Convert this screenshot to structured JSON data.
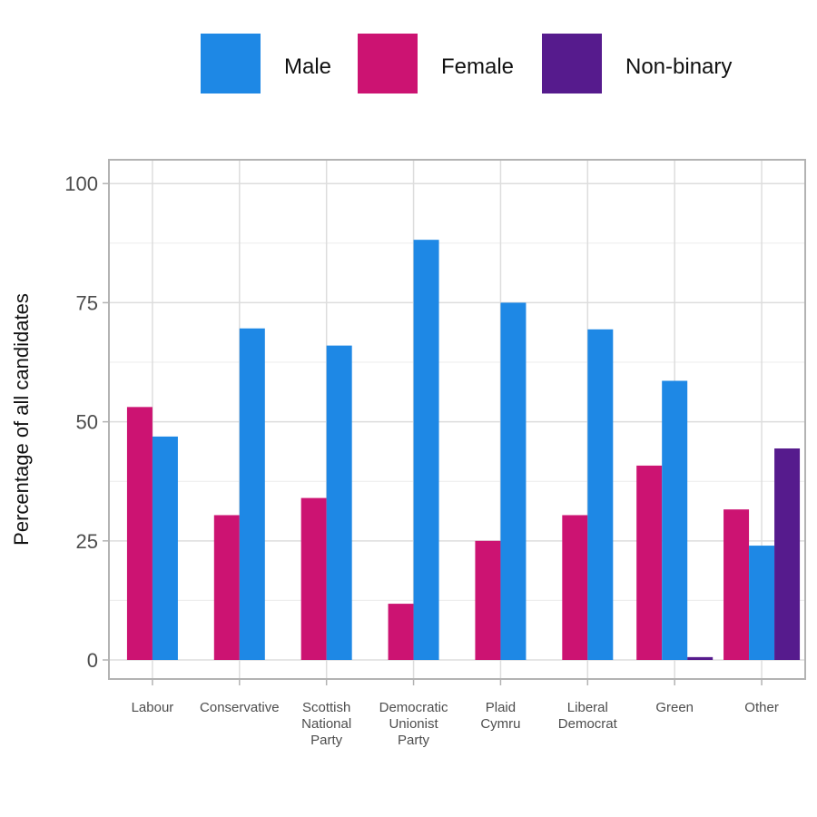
{
  "chart_data": {
    "type": "bar",
    "ylabel": "Percentage of all candidates",
    "xlabel": "",
    "ylim": [
      -4,
      105
    ],
    "yticks": [
      "0",
      "25",
      "50",
      "75",
      "100"
    ],
    "grid": true,
    "legend_position": "top",
    "categories": [
      [
        "Labour"
      ],
      [
        "Conservative"
      ],
      [
        "Scottish",
        "National",
        "Party"
      ],
      [
        "Democratic",
        "Unionist",
        "Party"
      ],
      [
        "Plaid",
        "Cymru"
      ],
      [
        "Liberal",
        "Democrat"
      ],
      [
        "Green"
      ],
      [
        "Other"
      ]
    ],
    "series": [
      {
        "name": "Female",
        "color": "#CC1372",
        "values": [
          53.1,
          30.4,
          34.0,
          11.8,
          25.0,
          30.4,
          40.8,
          31.6
        ]
      },
      {
        "name": "Male",
        "color": "#1E88E5",
        "values": [
          46.9,
          69.6,
          66.0,
          88.2,
          75.0,
          69.4,
          58.6,
          24.0
        ]
      },
      {
        "name": "Non-binary",
        "color": "#561B8D",
        "values": [
          0,
          0,
          0,
          0,
          0,
          0,
          0.6,
          44.4
        ]
      }
    ],
    "legend_order": [
      "Male",
      "Female",
      "Non-binary"
    ]
  }
}
